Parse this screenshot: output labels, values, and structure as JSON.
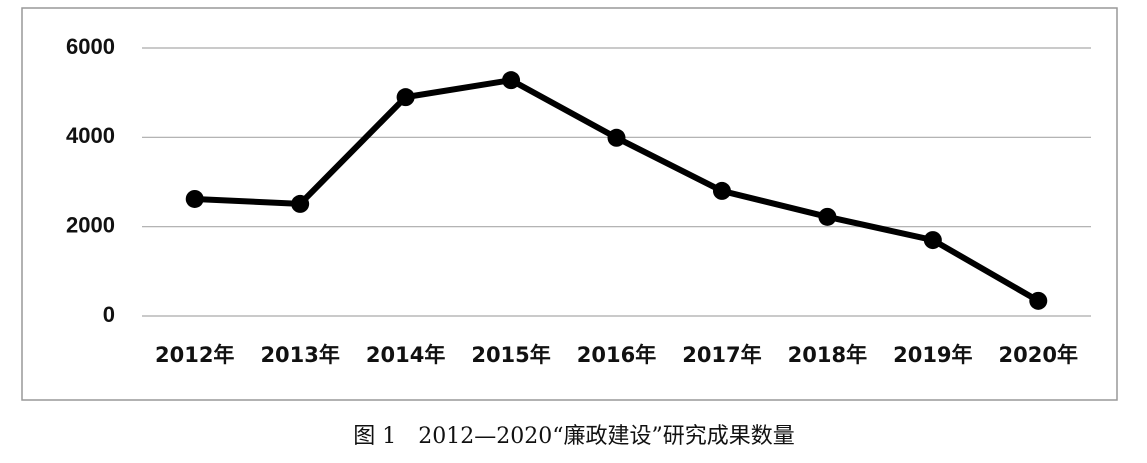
{
  "chart_data": {
    "type": "line",
    "categories": [
      "2012年",
      "2013年",
      "2014年",
      "2015年",
      "2016年",
      "2017年",
      "2018年",
      "2019年",
      "2020年"
    ],
    "values": [
      2620,
      2510,
      4900,
      5280,
      3990,
      2800,
      2220,
      1700,
      340
    ],
    "color": "#000000",
    "ylim": [
      0,
      6000
    ],
    "yticks": [
      0,
      2000,
      4000,
      6000
    ],
    "grid": true,
    "caption": "图 1　2012—2020“廉政建设”研究成果数量"
  }
}
